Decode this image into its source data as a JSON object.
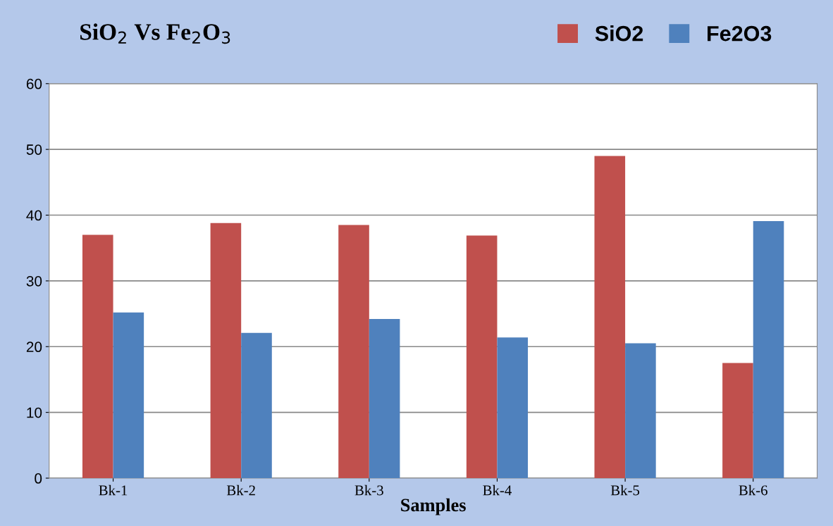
{
  "chart_data": {
    "type": "bar",
    "title": "SiO$_{2}$ Vs Fe$_{2}$O$_{3}$",
    "xlabel": "Samples",
    "categories": [
      "Bk-1",
      "Bk-2",
      "Bk-3",
      "Bk-4",
      "Bk-5",
      "Bk-6"
    ],
    "series": [
      {
        "name": "SiO2",
        "color": "#c0504d",
        "values": [
          37.0,
          38.8,
          38.5,
          36.9,
          49.0,
          17.5
        ]
      },
      {
        "name": "Fe2O3",
        "color": "#4f81bd",
        "values": [
          25.2,
          22.1,
          24.2,
          21.4,
          20.5,
          39.1
        ]
      }
    ],
    "ylim": [
      0,
      60
    ],
    "yticks": [
      0,
      10,
      20,
      30,
      40,
      50,
      60
    ],
    "grid": "y",
    "legend": "top right"
  }
}
